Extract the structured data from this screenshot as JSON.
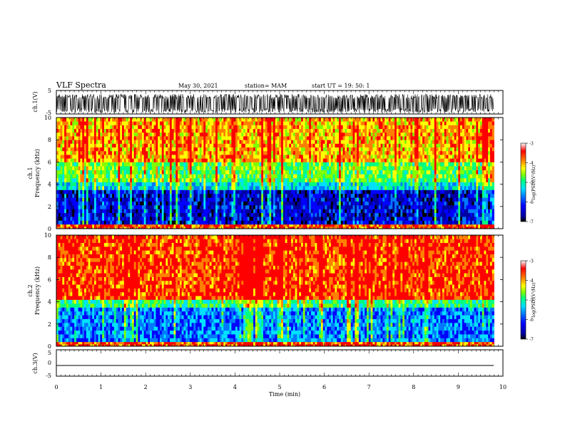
{
  "header": {
    "title": "VLF Spectra",
    "date": "May 30, 2021",
    "station": "station= MAM",
    "start": "start  UT =   19: 50: 1"
  },
  "colors": {
    "background": "#ffffff",
    "axis": "#000000",
    "colormap": [
      "#000000",
      "#0000a0",
      "#0000ff",
      "#0078ff",
      "#00e0ff",
      "#00ff80",
      "#80ff00",
      "#ffff00",
      "#ff8000",
      "#ff0000",
      "#ffffff"
    ]
  },
  "chart_data": [
    {
      "type": "line",
      "panel": "ch1-waveform",
      "ylabel": "ch.1(V)",
      "ylim": [
        -5,
        5
      ],
      "yticks": [
        "5",
        "-5"
      ],
      "xlim": [
        0,
        10
      ],
      "series": [
        {
          "values_range": [
            -4.5,
            3.5
          ]
        }
      ]
    },
    {
      "type": "heatmap",
      "panel": "ch1-spectrogram",
      "ylabel_top": "ch.1",
      "ylabel": "Frequency (kHz)",
      "ylim": [
        0,
        10
      ],
      "yticks": [
        "0",
        "2",
        "4",
        "6",
        "8",
        "10"
      ],
      "xlim": [
        0,
        9.8
      ],
      "description_bands": [
        {
          "freq_range": [
            0,
            0.4
          ],
          "level": -3.5
        },
        {
          "freq_range": [
            0.4,
            3.5
          ],
          "level": -6.2
        },
        {
          "freq_range": [
            3.5,
            4.2
          ],
          "level": -5.2
        },
        {
          "freq_range": [
            4.2,
            6.0
          ],
          "level": -4.6
        },
        {
          "freq_range": [
            6.0,
            10
          ],
          "level": -3.8
        }
      ],
      "colorbar": {
        "label": "log(PSD)(V²/Hz)",
        "ticks": [
          "-3",
          "-4",
          "-5",
          "-6",
          "-7"
        ],
        "range": [
          -7,
          -3
        ]
      }
    },
    {
      "type": "heatmap",
      "panel": "ch2-spectrogram",
      "ylabel_top": "ch.2",
      "ylabel": "Frequency (kHz)",
      "ylim": [
        0,
        10
      ],
      "yticks": [
        "0",
        "2",
        "4",
        "6",
        "8",
        "10"
      ],
      "xlim": [
        0,
        9.8
      ],
      "description_bands": [
        {
          "freq_range": [
            0,
            0.4
          ],
          "level": -3.5
        },
        {
          "freq_range": [
            0.4,
            3.5
          ],
          "level": -5.6
        },
        {
          "freq_range": [
            3.5,
            4.2
          ],
          "level": -4.8
        },
        {
          "freq_range": [
            4.2,
            10
          ],
          "level": -3.4
        }
      ],
      "colorbar": {
        "label": "log(PSD)(V²/Hz)",
        "ticks": [
          "-3",
          "-4",
          "-5",
          "-6",
          "-7"
        ],
        "range": [
          -7,
          -3
        ]
      }
    },
    {
      "type": "line",
      "panel": "ch3-waveform",
      "ylabel": "ch.3(V)",
      "ylim": [
        -5,
        5
      ],
      "yticks": [
        "5",
        "0",
        "-5"
      ],
      "xlim": [
        0,
        10
      ],
      "series": [
        {
          "values_range": [
            -2,
            -2
          ]
        }
      ]
    }
  ],
  "x_axis": {
    "label": "Time (min)",
    "ticks": [
      "0",
      "1",
      "2",
      "3",
      "4",
      "5",
      "6",
      "7",
      "8",
      "9",
      "10"
    ]
  }
}
